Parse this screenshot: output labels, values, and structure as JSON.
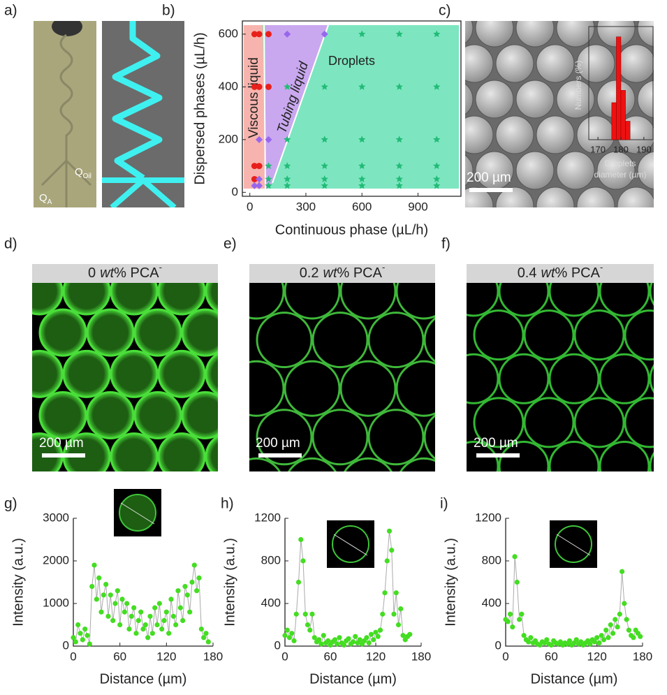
{
  "panel_labels": [
    "a)",
    "b)",
    "c)",
    "d)",
    "e)",
    "f)",
    "g)",
    "h)",
    "i)"
  ],
  "panel_a": {
    "labels": [
      {
        "main": "Q",
        "sub": "A"
      },
      {
        "main": "Q",
        "sub": "Oil"
      }
    ]
  },
  "images": [
    {
      "scale_bar": "200 µm"
    },
    {
      "scale_bar": "200 µm",
      "header": [
        "0",
        "wt",
        "% PCA",
        "-"
      ]
    },
    {
      "scale_bar": "200 µm",
      "header": [
        "0.2",
        "wt",
        "% PCA",
        "-"
      ]
    },
    {
      "scale_bar": "200 µm",
      "header": [
        "0.4",
        "wt",
        "% PCA",
        "-"
      ]
    }
  ],
  "chart_data": [
    {
      "type": "scatter",
      "xlabel": "Continuous phase (µL/h)",
      "ylabel": "Dispersed phases (µL/h)",
      "xlim": [
        -40,
        1130
      ],
      "ylim": [
        -15,
        650
      ],
      "xticks": [
        0,
        300,
        600,
        900
      ],
      "yticks": [
        0,
        200,
        400,
        600
      ],
      "annotations": [
        "Viscous liquid",
        "Tubing liquid",
        "Droplets"
      ],
      "series": [
        {
          "color": "#e8201c",
          "marker": "circle",
          "x": [
            25,
            50,
            100,
            25,
            50,
            100,
            25,
            50,
            25
          ],
          "values": [
            600,
            600,
            600,
            400,
            400,
            400,
            100,
            100,
            50
          ]
        },
        {
          "color": "#9966ee",
          "marker": "diamond",
          "x": [
            200,
            400,
            100,
            50,
            50,
            25,
            50
          ],
          "values": [
            600,
            600,
            200,
            200,
            25,
            25,
            50
          ]
        },
        {
          "color": "#22bb77",
          "marker": "star",
          "x": [
            600,
            800,
            1000,
            200,
            400,
            600,
            800,
            1000,
            200,
            400,
            600,
            800,
            1000,
            100,
            200,
            400,
            600,
            800,
            1000,
            100,
            200,
            400,
            600,
            800,
            1000,
            100,
            200,
            400,
            600,
            800,
            1000
          ],
          "values": [
            600,
            600,
            600,
            400,
            400,
            400,
            400,
            400,
            200,
            200,
            200,
            200,
            200,
            100,
            100,
            100,
            100,
            100,
            100,
            50,
            50,
            50,
            50,
            50,
            50,
            25,
            25,
            25,
            25,
            25,
            25
          ]
        }
      ]
    },
    {
      "type": "histogram",
      "xlabel": [
        "Droplets",
        "diameter (µm)"
      ],
      "ylabel": "Numbers (%)",
      "bins": [
        176,
        178,
        180,
        182,
        184
      ],
      "counts": [
        18,
        50,
        24,
        9
      ],
      "color": "#ee1111",
      "xlim": [
        166,
        194
      ],
      "ylim": [
        0,
        55
      ],
      "xticks": [
        170,
        180,
        190
      ]
    },
    {
      "type": "line",
      "xlabel": "Distance (µm)",
      "ylabel": "Intensity (a.u.)",
      "line_color": "#aaaaaa",
      "xlim": [
        0,
        180
      ],
      "ylim": [
        0,
        3000
      ],
      "xticks": [
        0,
        60,
        120,
        180
      ],
      "yticks": [
        0,
        1000,
        2000,
        3000
      ],
      "x": [
        0,
        3,
        6,
        9,
        12,
        15,
        18,
        21,
        24,
        27,
        30,
        33,
        36,
        39,
        42,
        45,
        48,
        51,
        54,
        57,
        60,
        63,
        66,
        69,
        72,
        75,
        78,
        81,
        84,
        87,
        90,
        93,
        96,
        99,
        102,
        105,
        108,
        111,
        114,
        117,
        120,
        123,
        126,
        129,
        132,
        135,
        138,
        141,
        144,
        147,
        150,
        153,
        156,
        159,
        162,
        165,
        168,
        171,
        174
      ],
      "series": [
        {
          "color": "#44dd22",
          "values": [
            200,
            100,
            500,
            300,
            150,
            400,
            250,
            50,
            1400,
            1900,
            1100,
            1600,
            800,
            1200,
            1450,
            700,
            1200,
            600,
            1000,
            1300,
            500,
            1100,
            800,
            1000,
            400,
            700,
            900,
            300,
            600,
            800,
            400,
            500,
            200,
            700,
            300,
            900,
            500,
            1000,
            400,
            600,
            800,
            300,
            1100,
            700,
            500,
            1300,
            900,
            600,
            1400,
            1200,
            800,
            1500,
            1900,
            1300,
            1600,
            400,
            200,
            300,
            100
          ]
        }
      ]
    },
    {
      "type": "line",
      "xlabel": "Distance (µm)",
      "ylabel": "Intensity (a.u.)",
      "line_color": "#aaaaaa",
      "xlim": [
        0,
        180
      ],
      "ylim": [
        0,
        1200
      ],
      "xticks": [
        0,
        60,
        120,
        180
      ],
      "yticks": [
        0,
        400,
        800,
        1200
      ],
      "x": [
        0,
        3,
        6,
        9,
        12,
        15,
        18,
        21,
        24,
        27,
        30,
        33,
        36,
        39,
        42,
        45,
        48,
        51,
        54,
        57,
        60,
        63,
        66,
        69,
        72,
        75,
        78,
        81,
        84,
        87,
        90,
        93,
        96,
        99,
        102,
        105,
        108,
        111,
        114,
        117,
        120,
        123,
        126,
        129,
        132,
        135,
        138,
        141,
        144,
        147,
        150,
        153,
        156,
        159,
        162,
        165
      ],
      "series": [
        {
          "color": "#44dd22",
          "values": [
            100,
            150,
            80,
            120,
            50,
            300,
            600,
            1000,
            800,
            300,
            200,
            150,
            300,
            80,
            40,
            60,
            20,
            100,
            30,
            50,
            10,
            40,
            60,
            20,
            80,
            30,
            10,
            50,
            70,
            20,
            40,
            90,
            30,
            60,
            20,
            50,
            80,
            30,
            110,
            60,
            130,
            90,
            150,
            300,
            500,
            800,
            1080,
            900,
            300,
            500,
            200,
            350,
            100,
            60,
            90,
            110
          ]
        }
      ]
    },
    {
      "type": "line",
      "xlabel": "Distance (µm)",
      "ylabel": "Intensity (a.u.)",
      "line_color": "#aaaaaa",
      "xlim": [
        0,
        180
      ],
      "ylim": [
        0,
        1200
      ],
      "xticks": [
        0,
        60,
        120,
        180
      ],
      "yticks": [
        0,
        400,
        800,
        1200
      ],
      "x": [
        0,
        3,
        6,
        9,
        12,
        15,
        18,
        21,
        24,
        27,
        30,
        33,
        36,
        39,
        42,
        45,
        48,
        51,
        54,
        57,
        60,
        63,
        66,
        69,
        72,
        75,
        78,
        81,
        84,
        87,
        90,
        93,
        96,
        99,
        102,
        105,
        108,
        111,
        114,
        117,
        120,
        123,
        126,
        129,
        132,
        135,
        138,
        141,
        144,
        147,
        150,
        153,
        156,
        159,
        162,
        165,
        168,
        171,
        174,
        177
      ],
      "series": [
        {
          "color": "#44dd22",
          "values": [
            250,
            230,
            300,
            180,
            840,
            600,
            250,
            300,
            100,
            60,
            40,
            80,
            30,
            50,
            20,
            10,
            40,
            30,
            60,
            20,
            10,
            50,
            30,
            20,
            40,
            10,
            30,
            20,
            50,
            10,
            30,
            60,
            20,
            40,
            10,
            30,
            50,
            20,
            60,
            40,
            80,
            30,
            100,
            60,
            150,
            80,
            200,
            120,
            250,
            180,
            300,
            700,
            400,
            250,
            150,
            100,
            80,
            150,
            120,
            90
          ]
        }
      ]
    }
  ]
}
